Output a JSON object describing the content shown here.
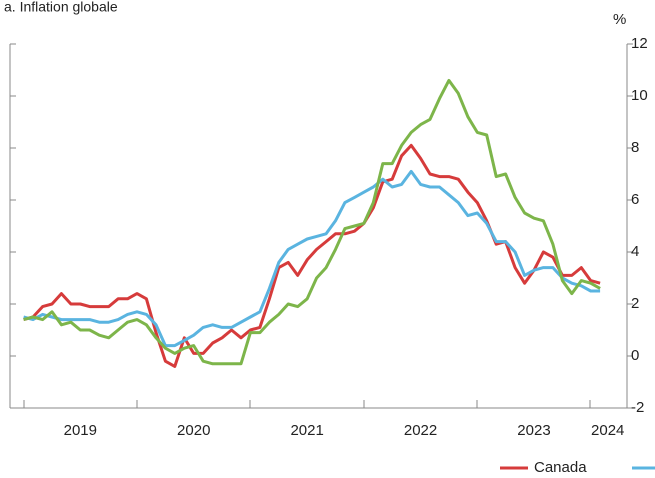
{
  "chart_data": {
    "type": "line",
    "title": "a. Inflation globale",
    "y_unit": "%",
    "x": [
      2019.0,
      2019.083,
      2019.167,
      2019.25,
      2019.333,
      2019.417,
      2019.5,
      2019.583,
      2019.667,
      2019.75,
      2019.833,
      2019.917,
      2020.0,
      2020.083,
      2020.167,
      2020.25,
      2020.333,
      2020.417,
      2020.5,
      2020.583,
      2020.667,
      2020.75,
      2020.833,
      2020.917,
      2021.0,
      2021.083,
      2021.167,
      2021.25,
      2021.333,
      2021.417,
      2021.5,
      2021.583,
      2021.667,
      2021.75,
      2021.833,
      2021.917,
      2022.0,
      2022.083,
      2022.167,
      2022.25,
      2022.333,
      2022.417,
      2022.5,
      2022.583,
      2022.667,
      2022.75,
      2022.833,
      2022.917,
      2023.0,
      2023.083,
      2023.167,
      2023.25,
      2023.333,
      2023.417,
      2023.5,
      2023.583,
      2023.667,
      2023.75,
      2023.833,
      2023.917,
      2024.0,
      2024.083
    ],
    "series": [
      {
        "name": "Canada",
        "color": "#d63b3b",
        "values": [
          1.4,
          1.5,
          1.9,
          2.0,
          2.4,
          2.0,
          2.0,
          1.9,
          1.9,
          1.9,
          2.2,
          2.2,
          2.4,
          2.2,
          0.9,
          -0.2,
          -0.4,
          0.7,
          0.1,
          0.1,
          0.5,
          0.7,
          1.0,
          0.7,
          1.0,
          1.1,
          2.2,
          3.4,
          3.6,
          3.1,
          3.7,
          4.1,
          4.4,
          4.7,
          4.7,
          4.8,
          5.1,
          5.7,
          6.7,
          6.8,
          7.7,
          8.1,
          7.6,
          7.0,
          6.9,
          6.9,
          6.8,
          6.3,
          5.9,
          5.2,
          4.3,
          4.4,
          3.4,
          2.8,
          3.3,
          4.0,
          3.8,
          3.1,
          3.1,
          3.4,
          2.9,
          2.8
        ]
      },
      {
        "color": "#5ab4e0",
        "values": [
          1.5,
          1.4,
          1.6,
          1.5,
          1.4,
          1.4,
          1.4,
          1.4,
          1.3,
          1.3,
          1.4,
          1.6,
          1.7,
          1.6,
          1.2,
          0.4,
          0.4,
          0.6,
          0.8,
          1.1,
          1.2,
          1.1,
          1.1,
          1.3,
          1.5,
          1.7,
          2.6,
          3.6,
          4.1,
          4.3,
          4.5,
          4.6,
          4.7,
          5.2,
          5.9,
          6.1,
          6.3,
          6.5,
          6.8,
          6.5,
          6.6,
          7.1,
          6.6,
          6.5,
          6.5,
          6.2,
          5.9,
          5.4,
          5.5,
          5.1,
          4.4,
          4.4,
          4.0,
          3.1,
          3.3,
          3.4,
          3.4,
          3.0,
          2.8,
          2.7,
          2.5,
          2.5
        ]
      },
      {
        "color": "#7db54a",
        "values": [
          1.4,
          1.5,
          1.4,
          1.7,
          1.2,
          1.3,
          1.0,
          1.0,
          0.8,
          0.7,
          1.0,
          1.3,
          1.4,
          1.2,
          0.7,
          0.3,
          0.1,
          0.3,
          0.4,
          -0.2,
          -0.3,
          -0.3,
          -0.3,
          -0.3,
          0.9,
          0.9,
          1.3,
          1.6,
          2.0,
          1.9,
          2.2,
          3.0,
          3.4,
          4.1,
          4.9,
          5.0,
          5.1,
          5.9,
          7.4,
          7.4,
          8.1,
          8.6,
          8.9,
          9.1,
          9.9,
          10.6,
          10.1,
          9.2,
          8.6,
          8.5,
          6.9,
          7.0,
          6.1,
          5.5,
          5.3,
          5.2,
          4.3,
          2.9,
          2.4,
          2.9,
          2.8,
          2.6
        ]
      }
    ],
    "xlim": [
      2018.88,
      2024.32
    ],
    "xticks": [
      {
        "value": 2019.5,
        "label": "2019"
      },
      {
        "value": 2020.5,
        "label": "2020"
      },
      {
        "value": 2021.5,
        "label": "2021"
      },
      {
        "value": 2022.5,
        "label": "2022"
      },
      {
        "value": 2023.5,
        "label": "2023"
      },
      {
        "value": 2024.15,
        "label": "2024"
      }
    ],
    "ylim": [
      -2,
      12
    ],
    "yticks": [
      -2,
      0,
      2,
      4,
      6,
      8,
      10,
      12
    ]
  }
}
